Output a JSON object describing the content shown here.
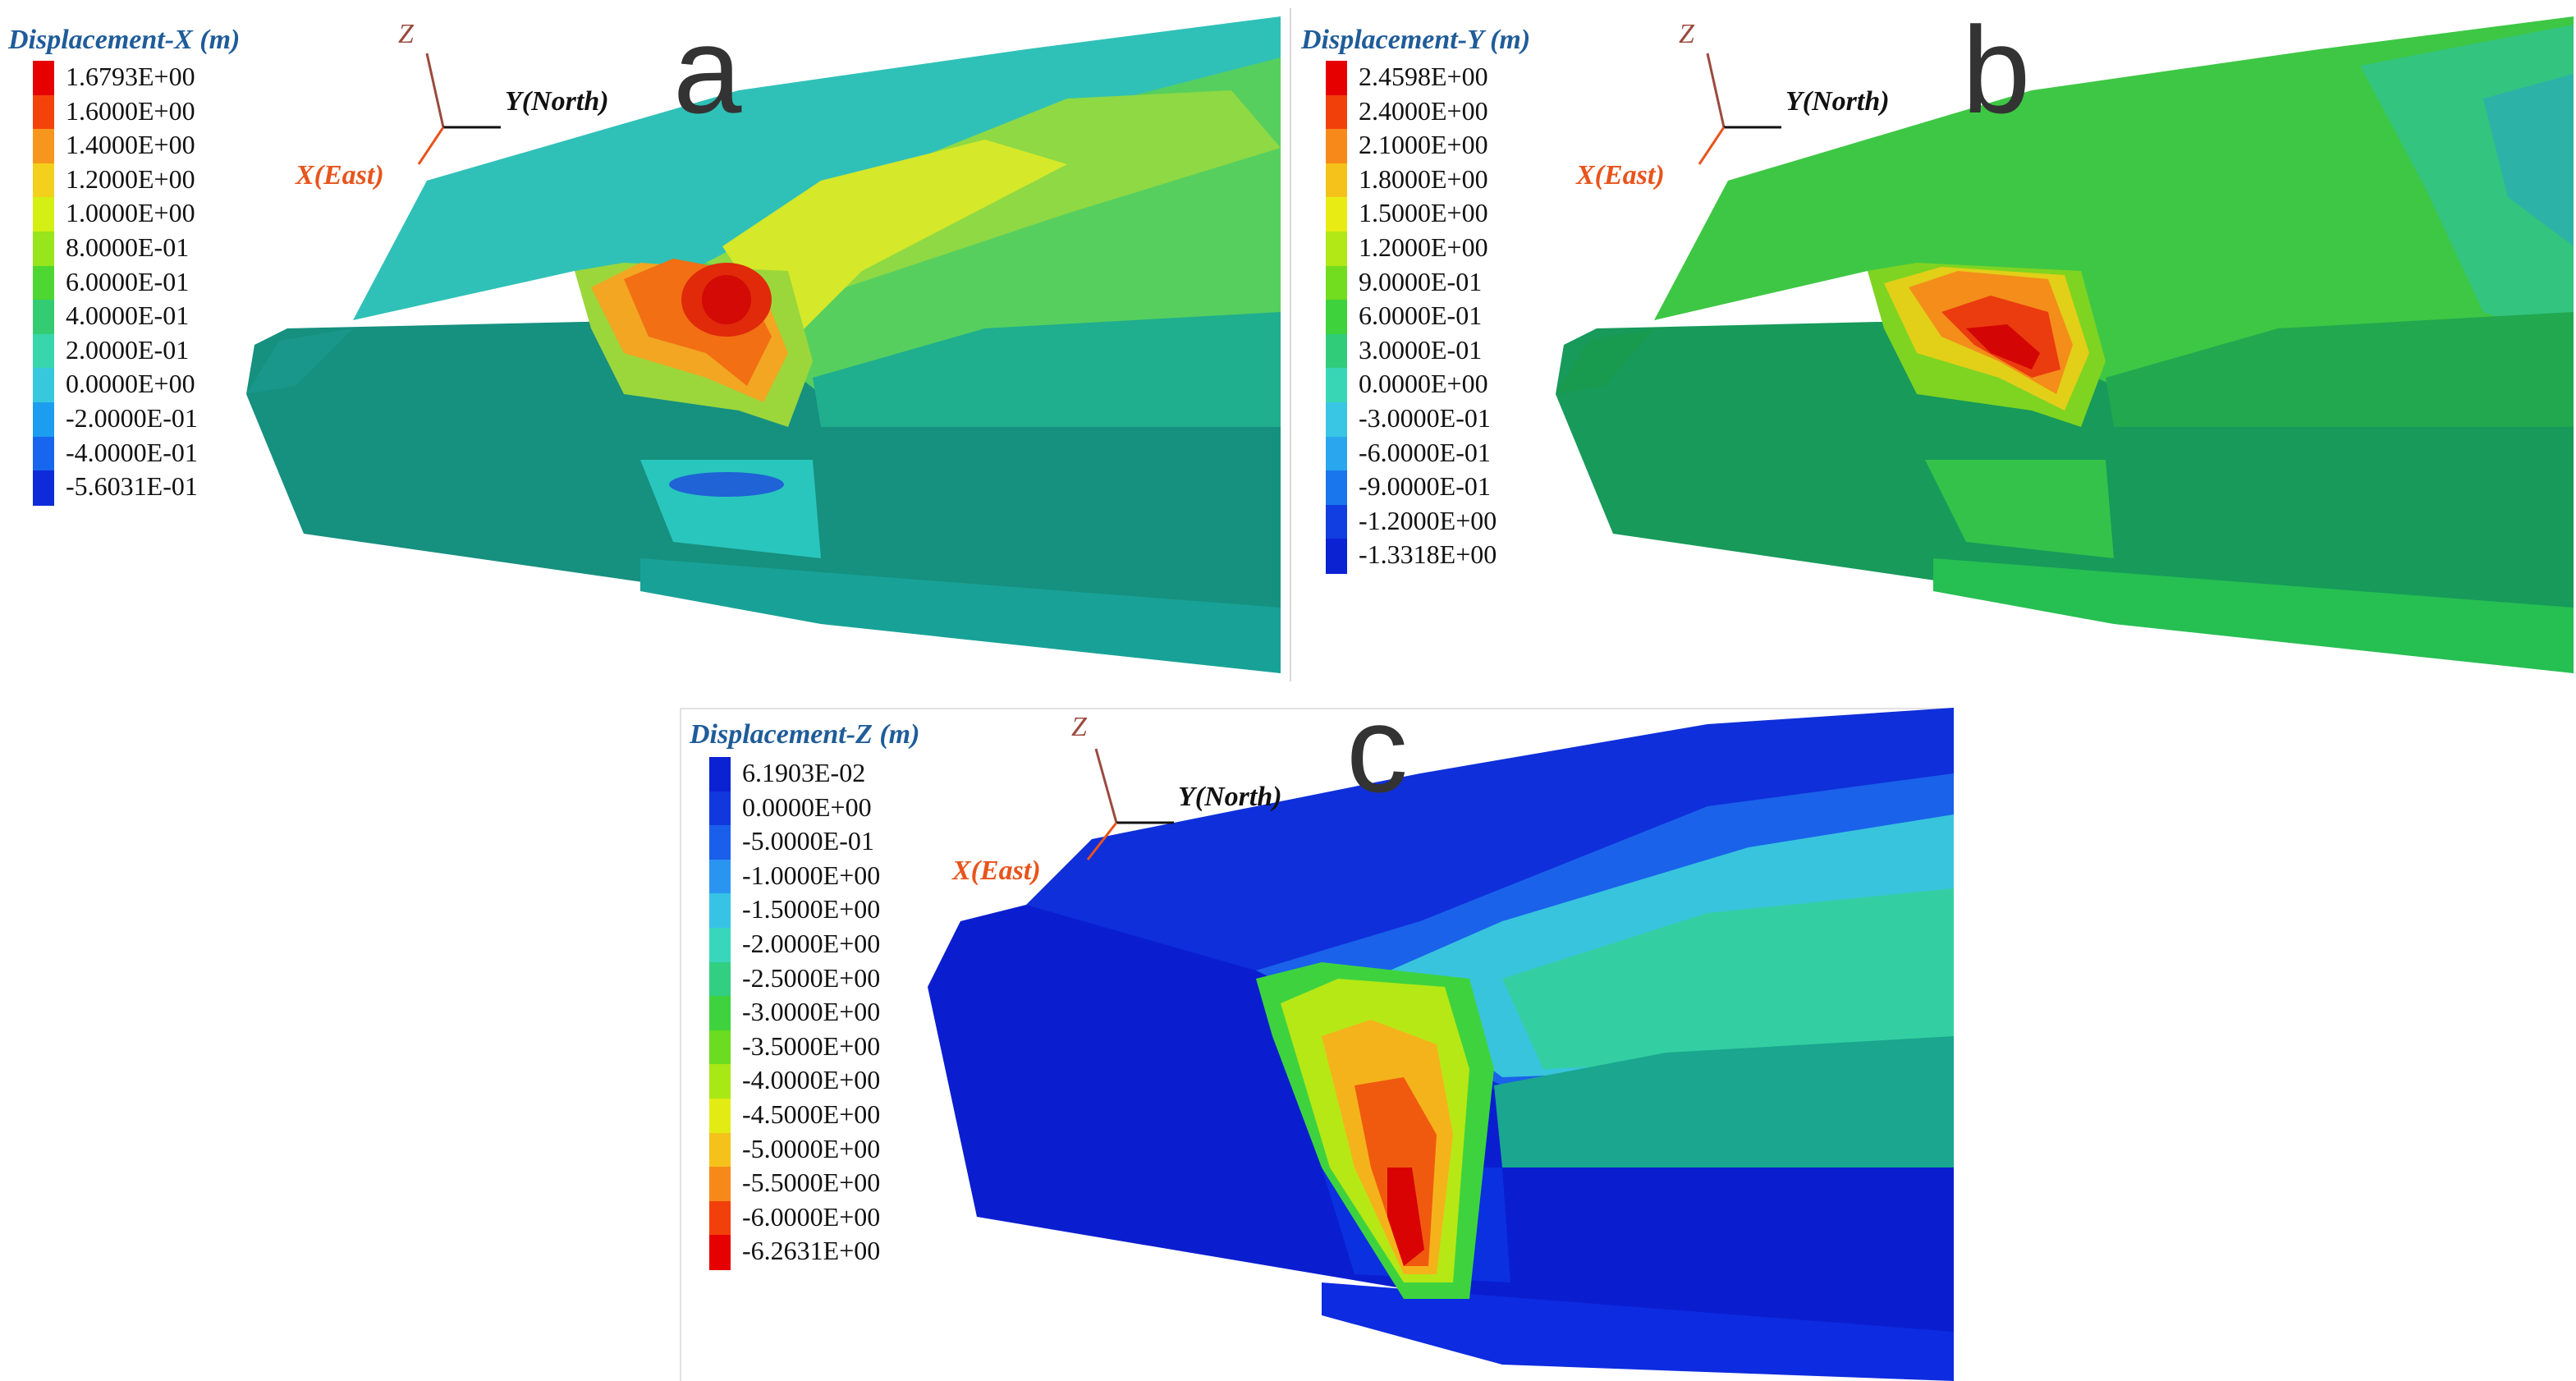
{
  "panels": [
    {
      "letter": "a",
      "legend_title": "Displacement-X (m)",
      "ticks": [
        "1.6793E+00",
        "1.6000E+00",
        "1.4000E+00",
        "1.2000E+00",
        "1.0000E+00",
        "8.0000E-01",
        "6.0000E-01",
        "4.0000E-01",
        "2.0000E-01",
        "0.0000E+00",
        "-2.0000E-01",
        "-4.0000E-01",
        "-5.6031E-01"
      ],
      "legend_colors": [
        "#e60000",
        "#f4430a",
        "#f7961c",
        "#f3d01b",
        "#d4ef14",
        "#97e51a",
        "#4ed732",
        "#33cc73",
        "#38d6ad",
        "#38c8dd",
        "#1d9df0",
        "#1866ee",
        "#0d2bd8"
      ],
      "axes": {
        "z": "Z",
        "y": "Y(North)",
        "x": "X(East)"
      }
    },
    {
      "letter": "b",
      "legend_title": "Displacement-Y (m)",
      "ticks": [
        "2.4598E+00",
        "2.4000E+00",
        "2.1000E+00",
        "1.8000E+00",
        "1.5000E+00",
        "1.2000E+00",
        "9.0000E-01",
        "6.0000E-01",
        "3.0000E-01",
        "0.0000E+00",
        "-3.0000E-01",
        "-6.0000E-01",
        "-9.0000E-01",
        "-1.2000E+00",
        "-1.3318E+00"
      ],
      "legend_colors": [
        "#e60000",
        "#f2400a",
        "#f7891a",
        "#f5c21b",
        "#e8ec14",
        "#b1e815",
        "#71dd1e",
        "#3ed33c",
        "#31cc7a",
        "#38d6b5",
        "#38c6e4",
        "#2aa6ef",
        "#1976ed",
        "#113ee0",
        "#0b22d3"
      ],
      "axes": {
        "z": "Z",
        "y": "Y(North)",
        "x": "X(East)"
      }
    },
    {
      "letter": "c",
      "legend_title": "Displacement-Z (m)",
      "ticks": [
        "6.1903E-02",
        "0.0000E+00",
        "-5.0000E-01",
        "-1.0000E+00",
        "-1.5000E+00",
        "-2.0000E+00",
        "-2.5000E+00",
        "-3.0000E+00",
        "-3.5000E+00",
        "-4.0000E+00",
        "-4.5000E+00",
        "-5.0000E+00",
        "-5.5000E+00",
        "-6.0000E+00",
        "-6.2631E+00"
      ],
      "legend_colors": [
        "#0b22d3",
        "#1138df",
        "#1a5fec",
        "#2a95f0",
        "#37c3e6",
        "#38d7bc",
        "#32ce82",
        "#3ed33e",
        "#6bdc1f",
        "#a8e815",
        "#e2ec14",
        "#f5c21b",
        "#f7891a",
        "#f2400a",
        "#e60000"
      ],
      "axes": {
        "z": "Z",
        "y": "Y(North)",
        "x": "X(East)"
      }
    }
  ]
}
